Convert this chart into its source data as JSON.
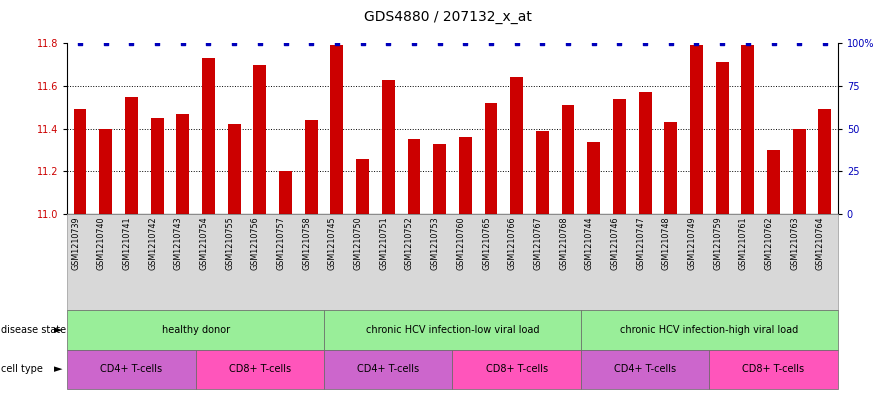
{
  "title": "GDS4880 / 207132_x_at",
  "samples": [
    "GSM1210739",
    "GSM1210740",
    "GSM1210741",
    "GSM1210742",
    "GSM1210743",
    "GSM1210754",
    "GSM1210755",
    "GSM1210756",
    "GSM1210757",
    "GSM1210758",
    "GSM1210745",
    "GSM1210750",
    "GSM1210751",
    "GSM1210752",
    "GSM1210753",
    "GSM1210760",
    "GSM1210765",
    "GSM1210766",
    "GSM1210767",
    "GSM1210768",
    "GSM1210744",
    "GSM1210746",
    "GSM1210747",
    "GSM1210748",
    "GSM1210749",
    "GSM1210759",
    "GSM1210761",
    "GSM1210762",
    "GSM1210763",
    "GSM1210764"
  ],
  "red_values": [
    11.49,
    11.4,
    11.55,
    11.45,
    11.47,
    11.73,
    11.42,
    11.7,
    11.2,
    11.44,
    11.79,
    11.26,
    11.63,
    11.35,
    11.33,
    11.36,
    11.52,
    11.64,
    11.39,
    11.51,
    11.34,
    11.54,
    11.57,
    11.43,
    11.79,
    11.71,
    11.79,
    11.3,
    11.4,
    11.49
  ],
  "blue_values": [
    100,
    100,
    100,
    100,
    100,
    100,
    100,
    100,
    100,
    100,
    100,
    100,
    100,
    100,
    100,
    100,
    100,
    100,
    100,
    100,
    100,
    100,
    100,
    100,
    100,
    100,
    100,
    100,
    100,
    100
  ],
  "ylim_left": [
    11.0,
    11.8
  ],
  "ylim_right": [
    0,
    100
  ],
  "yticks_left": [
    11.0,
    11.2,
    11.4,
    11.6,
    11.8
  ],
  "yticks_right": [
    0,
    25,
    50,
    75,
    100
  ],
  "ytick_labels_right": [
    "0",
    "25",
    "50",
    "75",
    "100%"
  ],
  "disease_state_groups": [
    {
      "label": "healthy donor",
      "start": 0,
      "end": 9
    },
    {
      "label": "chronic HCV infection-low viral load",
      "start": 10,
      "end": 19
    },
    {
      "label": "chronic HCV infection-high viral load",
      "start": 20,
      "end": 29
    }
  ],
  "cell_type_groups": [
    {
      "label": "CD4+ T-cells",
      "start": 0,
      "end": 4,
      "color": "#cc66cc"
    },
    {
      "label": "CD8+ T-cells",
      "start": 5,
      "end": 9,
      "color": "#ff66cc"
    },
    {
      "label": "CD4+ T-cells",
      "start": 10,
      "end": 14,
      "color": "#cc66cc"
    },
    {
      "label": "CD8+ T-cells",
      "start": 15,
      "end": 19,
      "color": "#ff66cc"
    },
    {
      "label": "CD4+ T-cells",
      "start": 20,
      "end": 24,
      "color": "#cc66cc"
    },
    {
      "label": "CD8+ T-cells",
      "start": 25,
      "end": 29,
      "color": "#ff66cc"
    }
  ],
  "bar_color": "#CC0000",
  "blue_color": "#0000BB",
  "ds_color": "#99ee99",
  "background_color": "#ffffff",
  "title_fontsize": 10,
  "tick_fontsize": 7,
  "bar_width": 0.5
}
